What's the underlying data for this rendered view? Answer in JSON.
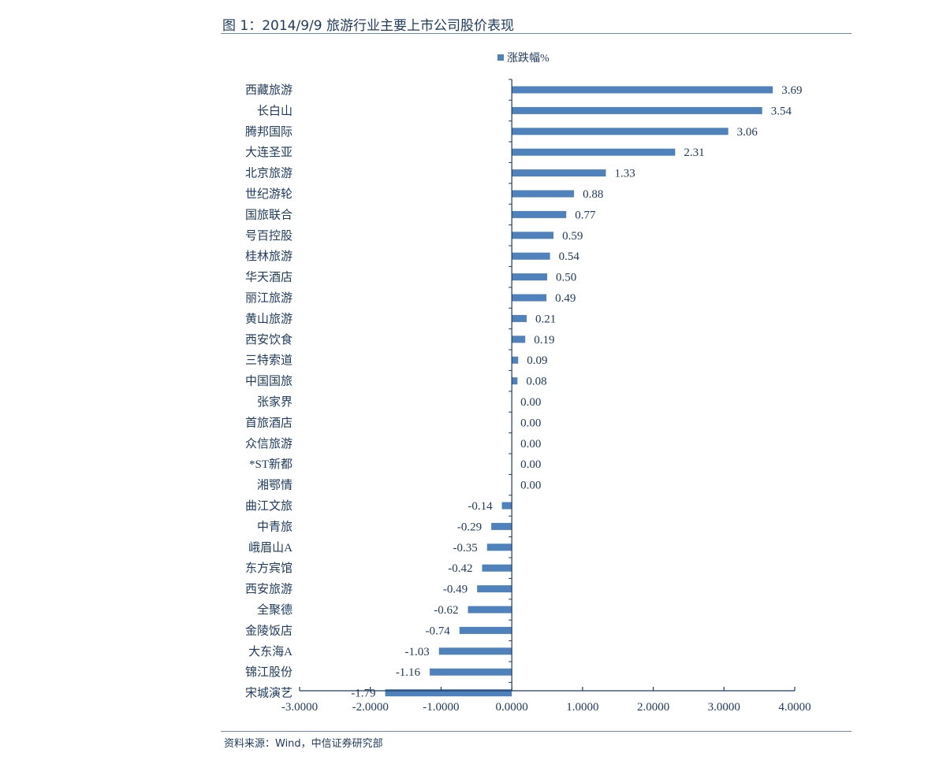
{
  "header": {
    "title": "图 1：2014/9/9 旅游行业主要上市公司股价表现"
  },
  "footer": {
    "source": "资料来源：Wind，中信证券研究部"
  },
  "colors": {
    "bar": "#4f81bd",
    "axis": "#1f3b63",
    "text": "#1f3b63"
  },
  "chart_data": {
    "type": "bar",
    "orientation": "horizontal",
    "title": "",
    "xlabel": "",
    "ylabel": "",
    "legend": {
      "position": "top",
      "entries": [
        "涨跌幅%"
      ]
    },
    "grid": false,
    "xlim": [
      -3,
      4
    ],
    "x_ticks": [
      -3,
      -2,
      -1,
      0,
      1,
      2,
      3,
      4
    ],
    "x_tick_labels": [
      "-3.0000",
      "-2.0000",
      "-1.0000",
      "0.0000",
      "1.0000",
      "2.0000",
      "3.0000",
      "4.0000"
    ],
    "categories": [
      "西藏旅游",
      "长白山",
      "腾邦国际",
      "大连圣亚",
      "北京旅游",
      "世纪游轮",
      "国旅联合",
      "号百控股",
      "桂林旅游",
      "华天酒店",
      "丽江旅游",
      "黄山旅游",
      "西安饮食",
      "三特索道",
      "中国国旅",
      "张家界",
      "首旅酒店",
      "众信旅游",
      "*ST新都",
      "湘鄂情",
      "曲江文旅",
      "中青旅",
      "峨眉山A",
      "东方宾馆",
      "西安旅游",
      "全聚德",
      "金陵饭店",
      "大东海A",
      "锦江股份",
      "宋城演艺"
    ],
    "series": [
      {
        "name": "涨跌幅%",
        "values": [
          3.69,
          3.54,
          3.06,
          2.31,
          1.33,
          0.88,
          0.77,
          0.59,
          0.54,
          0.5,
          0.49,
          0.21,
          0.19,
          0.09,
          0.08,
          0.0,
          0.0,
          0.0,
          0.0,
          0.0,
          -0.14,
          -0.29,
          -0.35,
          -0.42,
          -0.49,
          -0.62,
          -0.74,
          -1.03,
          -1.16,
          -1.79
        ],
        "labels": [
          "3.69",
          "3.54",
          "3.06",
          "2.31",
          "1.33",
          "0.88",
          "0.77",
          "0.59",
          "0.54",
          "0.50",
          "0.49",
          "0.21",
          "0.19",
          "0.09",
          "0.08",
          "0.00",
          "0.00",
          "0.00",
          "0.00",
          "0.00",
          "-0.14",
          "-0.29",
          "-0.35",
          "-0.42",
          "-0.49",
          "-0.62",
          "-0.74",
          "-1.03",
          "-1.16",
          "-1.79"
        ]
      }
    ]
  }
}
